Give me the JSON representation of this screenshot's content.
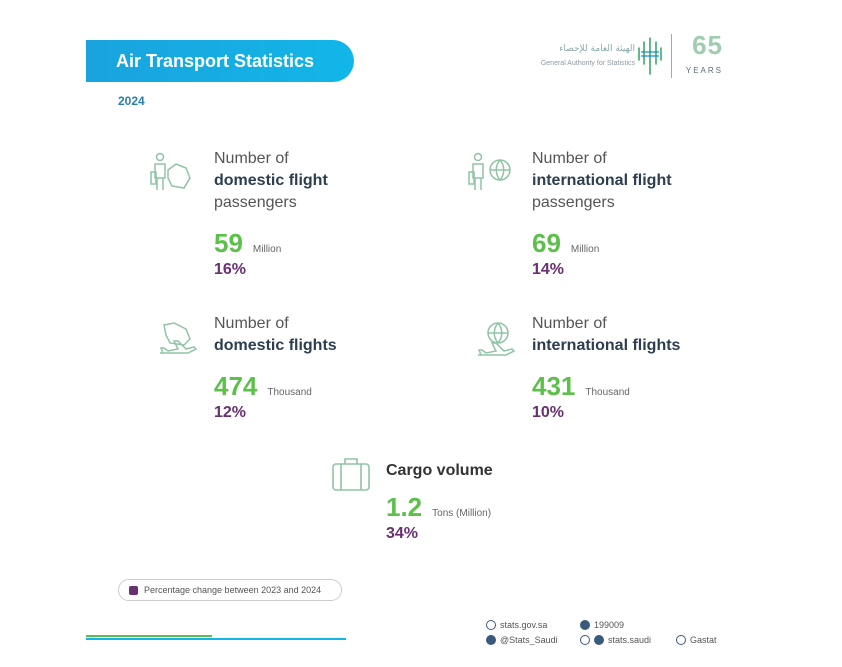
{
  "header": {
    "title": "Air Transport Statistics",
    "year": "2024"
  },
  "logo": {
    "arabic_name": "الهيئة العامة للإحصاء",
    "english_name": "General Authority for Statistics",
    "anniversary_number": "65",
    "anniversary_word": "YEARS"
  },
  "stats": {
    "domestic_passengers": {
      "label_line1": "Number of",
      "label_line2": "domestic flight",
      "label_line3": "passengers",
      "value": "59",
      "unit": "Million",
      "change": "16%"
    },
    "international_passengers": {
      "label_line1": "Number of",
      "label_line2": "international flight",
      "label_line3": "passengers",
      "value": "69",
      "unit": "Million",
      "change": "14%"
    },
    "domestic_flights": {
      "label_line1": "Number of",
      "label_line2": "domestic flights",
      "value": "474",
      "unit": "Thousand",
      "change": "12%"
    },
    "international_flights": {
      "label_line1": "Number of",
      "label_line2": "international flights",
      "value": "431",
      "unit": "Thousand",
      "change": "10%"
    },
    "cargo": {
      "label": "Cargo volume",
      "value": "1.2",
      "unit": "Tons (Million)",
      "change": "34%"
    }
  },
  "legend": {
    "text": "Percentage change between 2023 and 2024",
    "color": "#6a2f73"
  },
  "footer": {
    "website": "stats.gov.sa",
    "phone": "199009",
    "twitter": "@Stats_Saudi",
    "social": "stats.saudi",
    "handle": "Gastat"
  },
  "colors": {
    "accent_blue": "#12b6e8",
    "value_green": "#5cc04a",
    "percent_purple": "#6a2f73"
  }
}
